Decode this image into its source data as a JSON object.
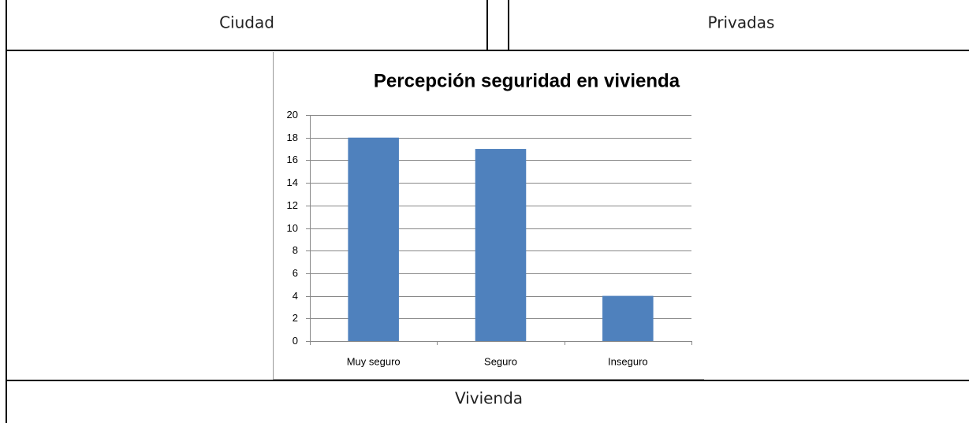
{
  "table": {
    "header": [
      "Ciudad",
      "Privadas"
    ],
    "caption": "Vivienda"
  },
  "chart_data": {
    "type": "bar",
    "title": "Percepción seguridad en vivienda",
    "categories": [
      "Muy seguro",
      "Seguro",
      "Inseguro"
    ],
    "values": [
      18,
      17,
      4
    ],
    "color": "#4f81bd",
    "ylim": [
      0,
      20
    ],
    "yticks": [
      0,
      2,
      4,
      6,
      8,
      10,
      12,
      14,
      16,
      18,
      20
    ],
    "grid": true
  }
}
